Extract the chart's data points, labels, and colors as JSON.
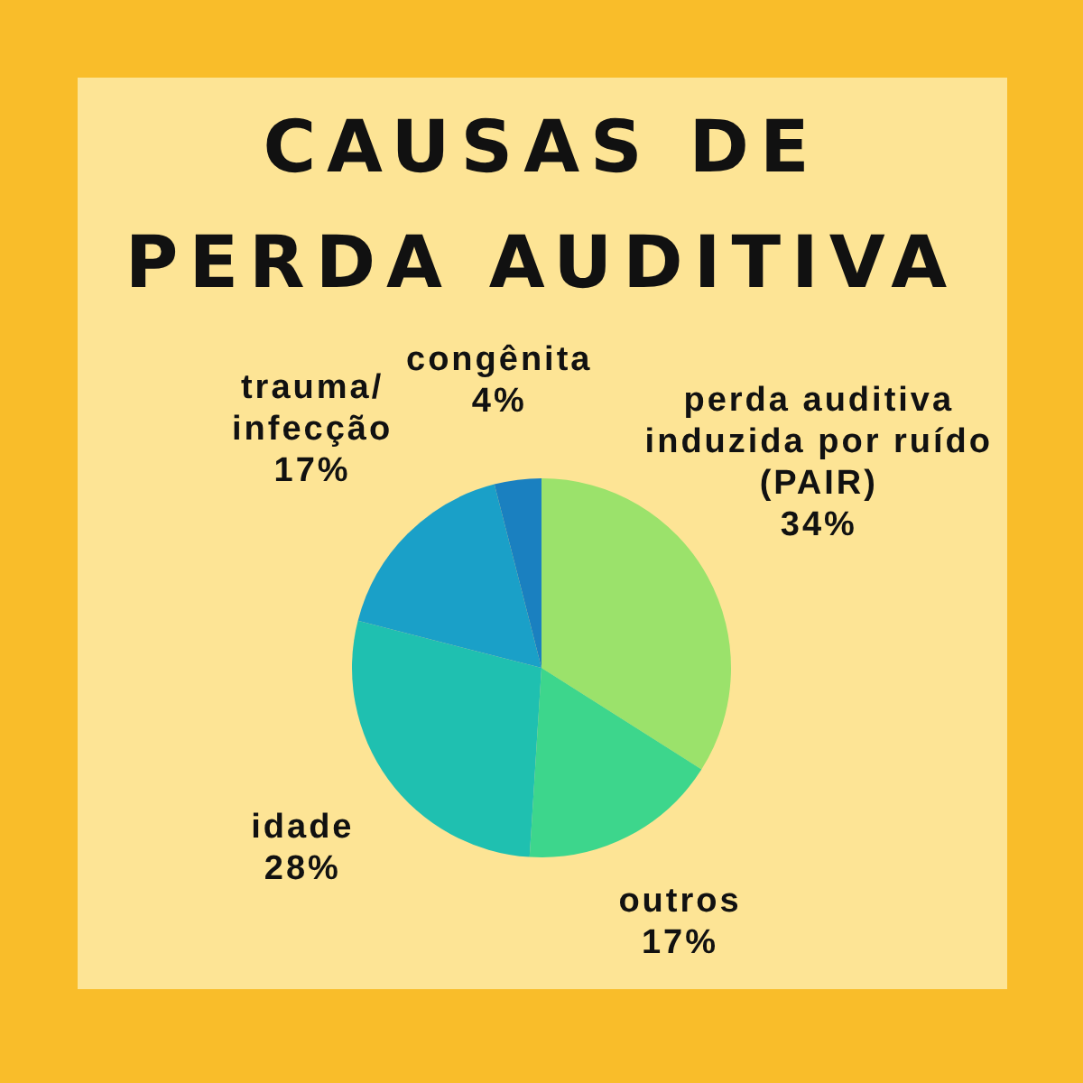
{
  "chart_data": {
    "type": "pie",
    "title": "CAUSAS DE\nPERDA AUDITIVA",
    "categories": [
      "perda auditiva\ninduzida por ruído\n(PAIR)",
      "outros",
      "idade",
      "trauma/\ninfecção",
      "congênita"
    ],
    "values": [
      34,
      17,
      28,
      17,
      4
    ],
    "value_labels": [
      "34%",
      "17%",
      "28%",
      "17%",
      "4%"
    ],
    "colors": [
      "#9be26b",
      "#3dd68c",
      "#1fc0b0",
      "#1aa0c8",
      "#1a80c0"
    ],
    "legend": false
  }
}
